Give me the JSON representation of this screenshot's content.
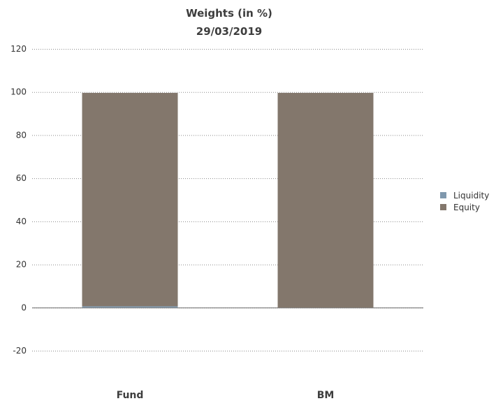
{
  "chart_data": {
    "type": "bar",
    "title": "Weights (in %)",
    "subtitle": "29/03/2019",
    "categories": [
      "Fund",
      "BM"
    ],
    "series": [
      {
        "name": "Liquidity",
        "color": "#7f98ad",
        "values": [
          0.6,
          0
        ]
      },
      {
        "name": "Equity",
        "color": "#83776c",
        "values": [
          99.0,
          99.6
        ]
      }
    ],
    "ylim": [
      -20,
      120
    ],
    "yticks": [
      -20,
      0,
      20,
      40,
      60,
      80,
      100,
      120
    ],
    "grid": true,
    "legend_position": "right"
  }
}
